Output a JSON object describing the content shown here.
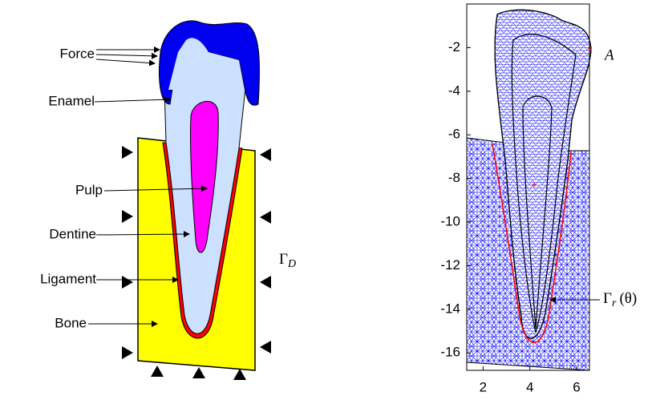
{
  "left_diagram": {
    "labels": [
      "Force",
      "Enamel",
      "Pulp",
      "Dentine",
      "Ligament",
      "Bone"
    ],
    "boundary_label": {
      "symbol": "Γ",
      "subscript": "D"
    }
  },
  "mesh_plot": {
    "xlim": [
      1.3,
      6.55
    ],
    "ylim": [
      -16.8,
      0
    ],
    "xticks": [
      2,
      4,
      6
    ],
    "yticks": [
      -2,
      -4,
      -6,
      -8,
      -10,
      -12,
      -14,
      -16
    ],
    "point_label": "A",
    "curve_label": {
      "symbol": "Γ",
      "subscript": "r",
      "argument": "(θ)"
    }
  }
}
